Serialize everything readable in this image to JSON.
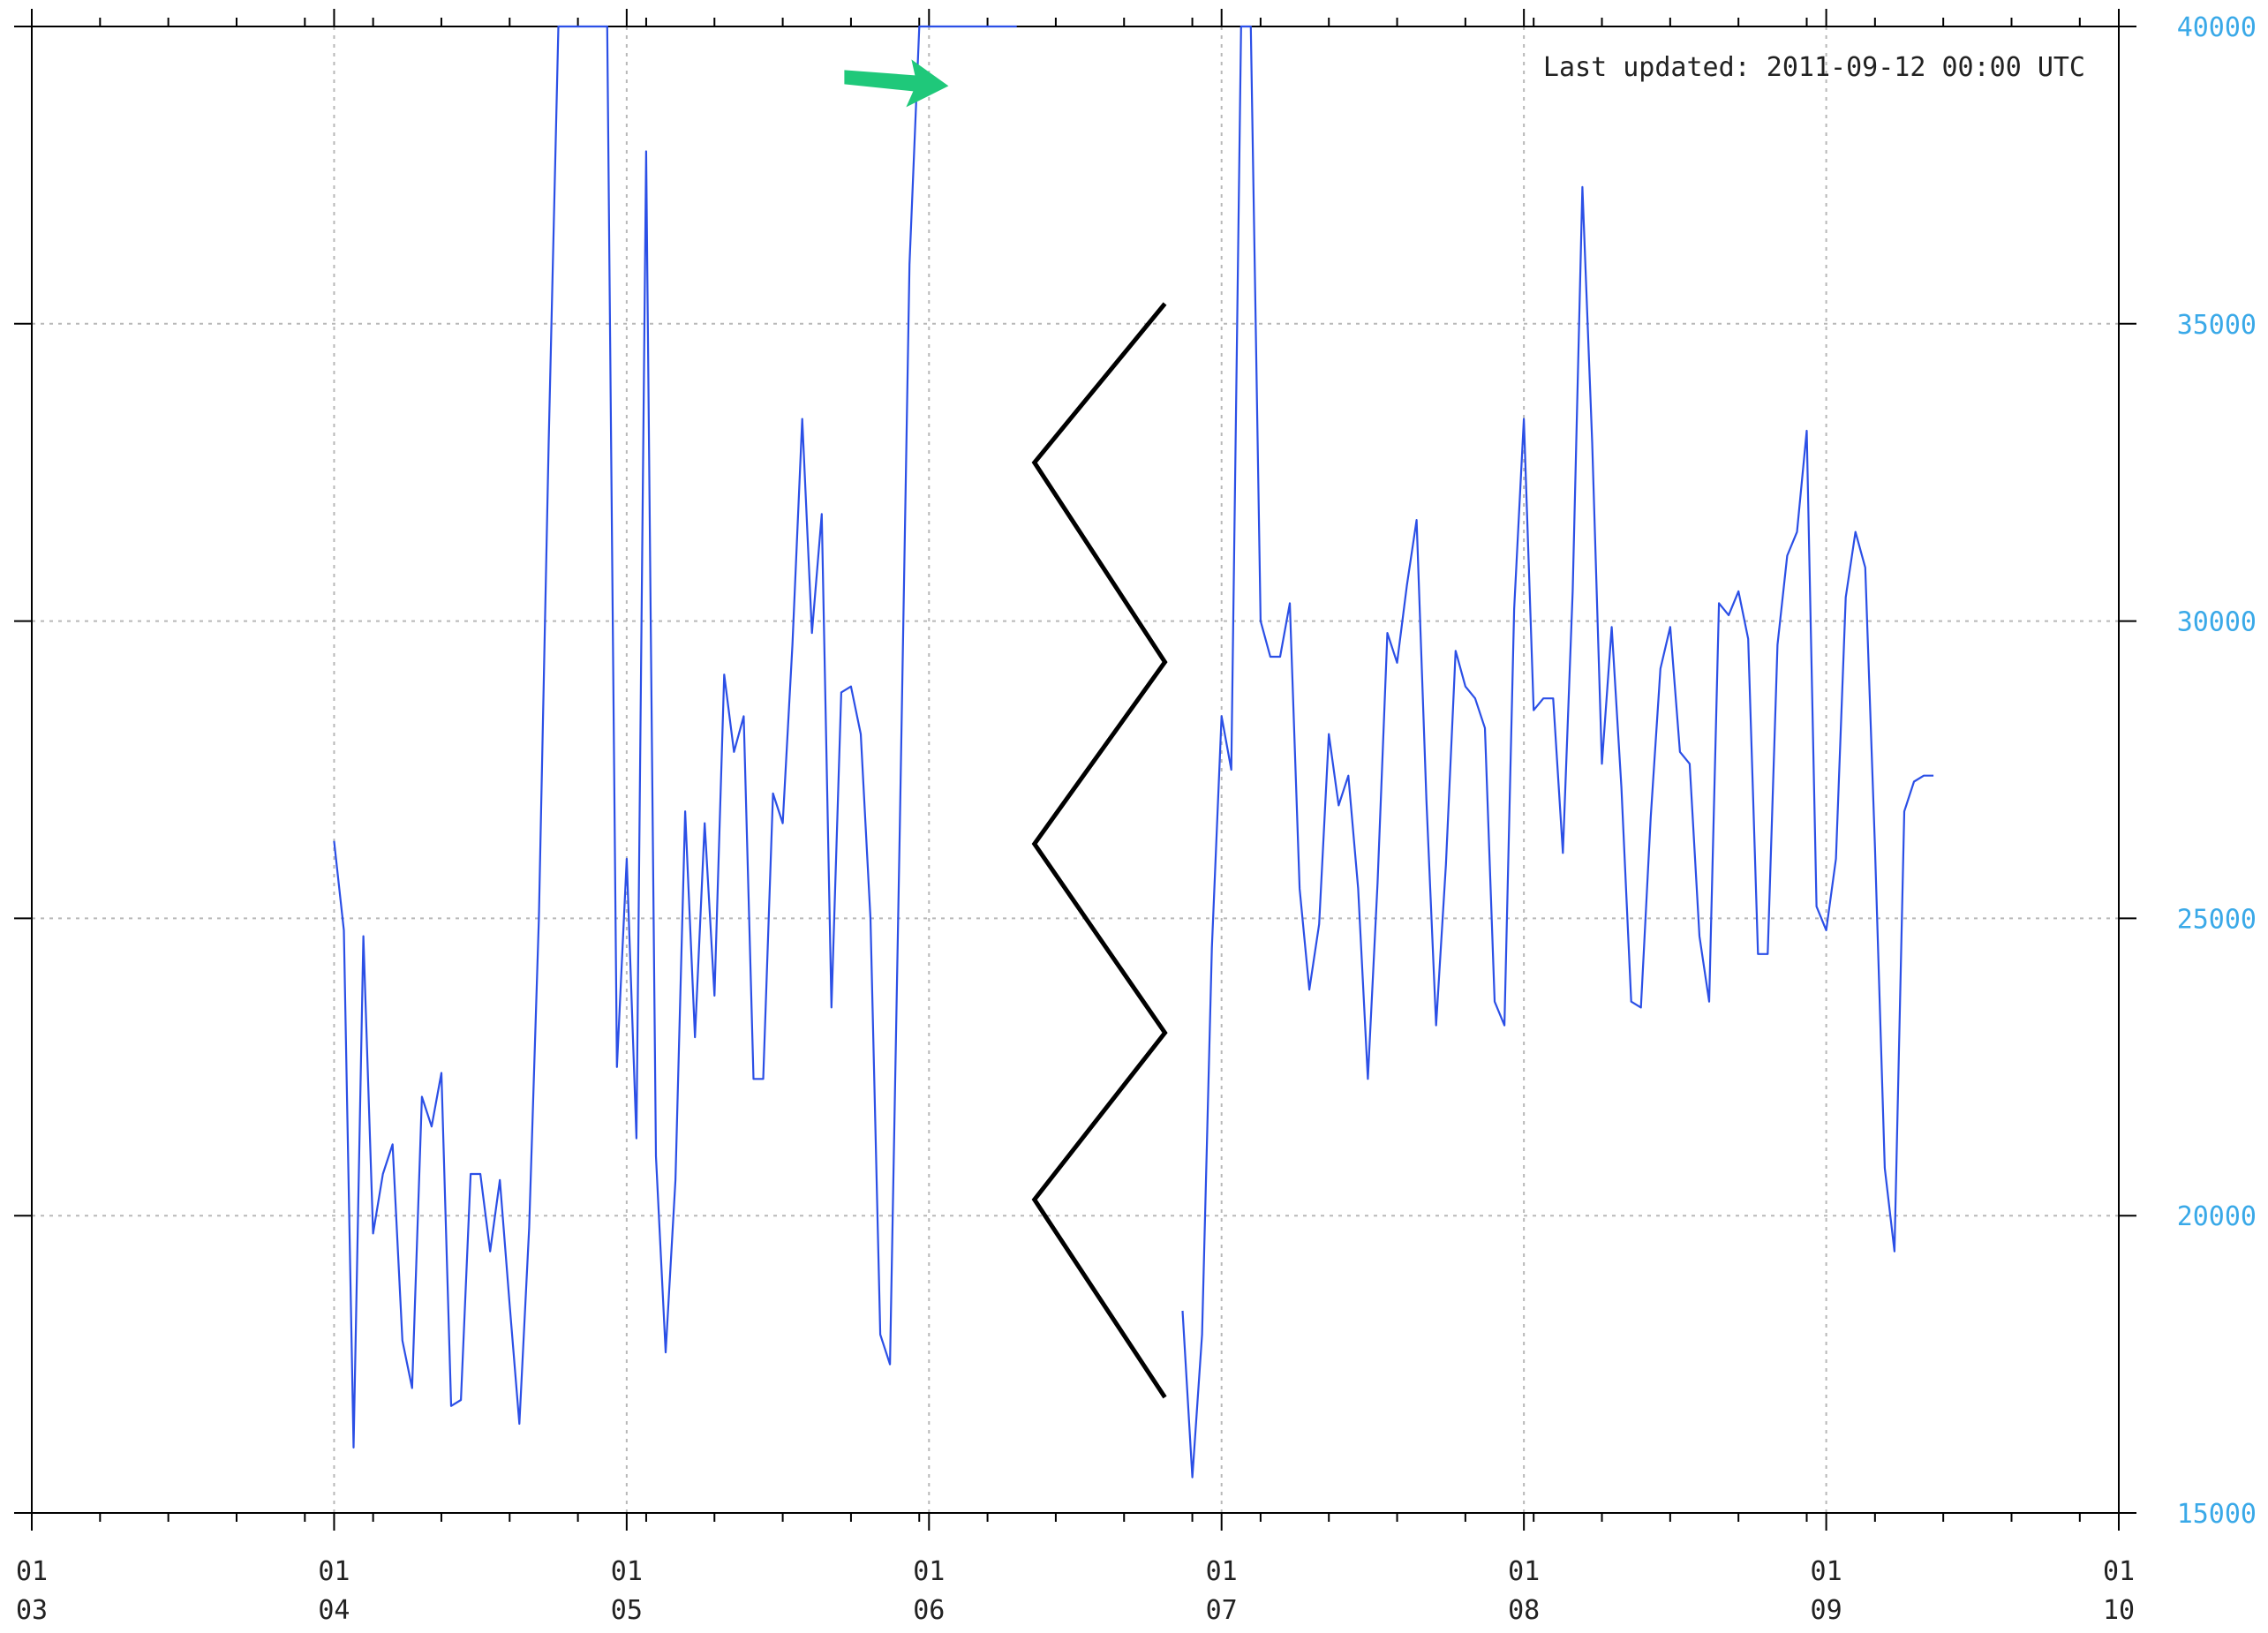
{
  "chart_data": {
    "type": "line",
    "title": "",
    "xlabel": "",
    "ylabel": "",
    "annotation": "Last updated: 2011-09-12 00:00 UTC",
    "x_ticks": [
      {
        "day": 1,
        "month": "03"
      },
      {
        "day": 1,
        "month": "04"
      },
      {
        "day": 1,
        "month": "05"
      },
      {
        "day": 1,
        "month": "06"
      },
      {
        "day": 1,
        "month": "07"
      },
      {
        "day": 1,
        "month": "08"
      },
      {
        "day": 1,
        "month": "09"
      },
      {
        "day": 1,
        "month": "10"
      }
    ],
    "xlim": [
      "2011-03-01",
      "2011-10-01"
    ],
    "ylim": [
      15000,
      40000
    ],
    "y_ticks": [
      15000,
      20000,
      25000,
      30000,
      35000,
      40000
    ],
    "y_axis_side": "right",
    "grid": true,
    "colors": {
      "series": "#2b4fe6",
      "y_ticks": "#3aa9e8",
      "arrow": "#1fc87a",
      "break_mark": "#000000"
    },
    "axis_break": {
      "between": [
        "2011-06-10",
        "2011-06-27"
      ],
      "style": "zigzag"
    },
    "arrow_marker": {
      "date": "2011-06-03",
      "value": 39000,
      "color": "green"
    },
    "series": [
      {
        "name": "",
        "x": [
          "2011-04-01",
          "2011-04-02",
          "2011-04-03",
          "2011-04-04",
          "2011-04-05",
          "2011-04-06",
          "2011-04-07",
          "2011-04-08",
          "2011-04-09",
          "2011-04-10",
          "2011-04-11",
          "2011-04-12",
          "2011-04-13",
          "2011-04-14",
          "2011-04-15",
          "2011-04-16",
          "2011-04-17",
          "2011-04-18",
          "2011-04-19",
          "2011-04-20",
          "2011-04-21",
          "2011-04-22",
          "2011-04-23",
          "2011-04-24",
          "2011-04-25",
          "2011-04-26",
          "2011-04-27",
          "2011-04-28",
          "2011-04-29",
          "2011-04-30",
          "2011-05-01",
          "2011-05-02",
          "2011-05-03",
          "2011-05-04",
          "2011-05-05",
          "2011-05-06",
          "2011-05-07",
          "2011-05-08",
          "2011-05-09",
          "2011-05-10",
          "2011-05-11",
          "2011-05-12",
          "2011-05-13",
          "2011-05-14",
          "2011-05-15",
          "2011-05-16",
          "2011-05-17",
          "2011-05-18",
          "2011-05-19",
          "2011-05-20",
          "2011-05-21",
          "2011-05-22",
          "2011-05-23",
          "2011-05-24",
          "2011-05-25",
          "2011-05-26",
          "2011-05-27",
          "2011-05-28",
          "2011-05-29",
          "2011-05-30",
          "2011-05-31",
          "2011-06-01",
          "2011-06-02",
          "2011-06-03",
          "2011-06-04",
          "2011-06-05",
          "2011-06-06",
          "2011-06-07",
          "2011-06-08",
          "2011-06-09",
          "2011-06-10",
          "2011-06-27",
          "2011-06-28",
          "2011-06-29",
          "2011-06-30",
          "2011-07-01",
          "2011-07-02",
          "2011-07-03",
          "2011-07-04",
          "2011-07-05",
          "2011-07-06",
          "2011-07-07",
          "2011-07-08",
          "2011-07-09",
          "2011-07-10",
          "2011-07-11",
          "2011-07-12",
          "2011-07-13",
          "2011-07-14",
          "2011-07-15",
          "2011-07-16",
          "2011-07-17",
          "2011-07-18",
          "2011-07-19",
          "2011-07-20",
          "2011-07-21",
          "2011-07-22",
          "2011-07-23",
          "2011-07-24",
          "2011-07-25",
          "2011-07-26",
          "2011-07-27",
          "2011-07-28",
          "2011-07-29",
          "2011-07-30",
          "2011-07-31",
          "2011-08-01",
          "2011-08-02",
          "2011-08-03",
          "2011-08-04",
          "2011-08-05",
          "2011-08-06",
          "2011-08-07",
          "2011-08-08",
          "2011-08-09",
          "2011-08-10",
          "2011-08-11",
          "2011-08-12",
          "2011-08-13",
          "2011-08-14",
          "2011-08-15",
          "2011-08-16",
          "2011-08-17",
          "2011-08-18",
          "2011-08-19",
          "2011-08-20",
          "2011-08-21",
          "2011-08-22",
          "2011-08-23",
          "2011-08-24",
          "2011-08-25",
          "2011-08-26",
          "2011-08-27",
          "2011-08-28",
          "2011-08-29",
          "2011-08-30",
          "2011-08-31",
          "2011-09-01",
          "2011-09-02",
          "2011-09-03",
          "2011-09-04",
          "2011-09-05",
          "2011-09-06",
          "2011-09-07",
          "2011-09-08",
          "2011-09-09",
          "2011-09-10",
          "2011-09-11",
          "2011-09-12"
        ],
        "values": [
          26300,
          24800,
          16100,
          24700,
          19700,
          20700,
          21200,
          17900,
          17100,
          22000,
          21500,
          22400,
          16800,
          16900,
          20700,
          20700,
          19400,
          20600,
          18500,
          16500,
          19800,
          25000,
          33000,
          40000,
          40000,
          40000,
          40000,
          40000,
          40000,
          22500,
          26000,
          21300,
          37900,
          21000,
          17700,
          20600,
          26800,
          23000,
          26600,
          23700,
          29100,
          27800,
          28400,
          22300,
          22300,
          27100,
          26600,
          29600,
          33400,
          29800,
          31800,
          23500,
          28800,
          28900,
          28100,
          25000,
          18000,
          17500,
          26500,
          36000,
          40000,
          40000,
          40000,
          40000,
          40000,
          40000,
          40000,
          40000,
          40000,
          40000,
          40000,
          18400,
          15600,
          18000,
          24500,
          28400,
          27500,
          40000,
          40000,
          30000,
          29400,
          29400,
          30300,
          25500,
          23800,
          24900,
          28100,
          26900,
          27400,
          25500,
          22300,
          25600,
          29800,
          29300,
          30600,
          31700,
          27000,
          23200,
          25900,
          29500,
          28900,
          28700,
          28200,
          23600,
          23200,
          30200,
          33400,
          28500,
          28700,
          28700,
          26100,
          30500,
          37300,
          33000,
          27600,
          29900,
          27200,
          23600,
          23500,
          26700,
          29200,
          29900,
          27800,
          27600,
          24700,
          23600,
          30300,
          30100,
          30500,
          29700,
          24400,
          24400,
          29600,
          31100,
          31500,
          33200,
          25200,
          24800,
          26000,
          30400,
          31500,
          30900,
          26200,
          20800,
          19400,
          26800,
          27300,
          27400,
          27400
        ]
      }
    ]
  }
}
